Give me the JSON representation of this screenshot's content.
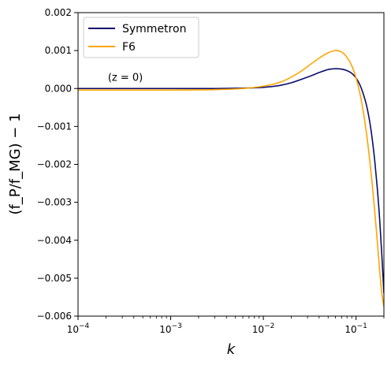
{
  "chart_data": {
    "type": "line",
    "xscale": "log",
    "xlabel": "k",
    "ylabel": "(f_P/f_MG) − 1",
    "xlim": [
      0.0001,
      0.2
    ],
    "ylim": [
      -0.006,
      0.002
    ],
    "x_ticks": [
      {
        "value": 0.0001,
        "base": "10",
        "exp": "−4"
      },
      {
        "value": 0.001,
        "base": "10",
        "exp": "−3"
      },
      {
        "value": 0.01,
        "base": "10",
        "exp": "−2"
      },
      {
        "value": 0.1,
        "base": "10",
        "exp": "−1"
      }
    ],
    "y_ticks": [
      {
        "value": 0.002,
        "label": "0.002"
      },
      {
        "value": 0.001,
        "label": "0.001"
      },
      {
        "value": 0.0,
        "label": "0.000"
      },
      {
        "value": -0.001,
        "label": "−0.001"
      },
      {
        "value": -0.002,
        "label": "−0.002"
      },
      {
        "value": -0.003,
        "label": "−0.003"
      },
      {
        "value": -0.004,
        "label": "−0.004"
      },
      {
        "value": -0.005,
        "label": "−0.005"
      },
      {
        "value": -0.006,
        "label": "−0.006"
      }
    ],
    "annotation": {
      "text": "(z = 0)",
      "x": 0.00021,
      "y": 0.0002
    },
    "legend_position": "top-left",
    "grid": false,
    "series": [
      {
        "name": "Symmetron",
        "color": "#0b0b6e",
        "x": [
          0.0001,
          0.001,
          0.003,
          0.006,
          0.01,
          0.015,
          0.02,
          0.03,
          0.04,
          0.05,
          0.06,
          0.07,
          0.08,
          0.09,
          0.1,
          0.11,
          0.12,
          0.13,
          0.14,
          0.15,
          0.16,
          0.17,
          0.18,
          0.19,
          0.2
        ],
        "y": [
          0.0,
          0.0,
          0.0,
          1e-05,
          3e-05,
          8e-05,
          0.00015,
          0.0003,
          0.00042,
          0.0005,
          0.00052,
          0.00051,
          0.00047,
          0.0004,
          0.00028,
          0.0001,
          -0.00015,
          -0.00045,
          -0.00085,
          -0.00135,
          -0.00195,
          -0.00265,
          -0.00345,
          -0.0044,
          -0.0054
        ]
      },
      {
        "name": "F6",
        "color": "#ffa500",
        "x": [
          0.0001,
          0.001,
          0.003,
          0.006,
          0.01,
          0.015,
          0.02,
          0.025,
          0.03,
          0.04,
          0.05,
          0.06,
          0.07,
          0.08,
          0.09,
          0.1,
          0.11,
          0.12,
          0.13,
          0.14,
          0.15,
          0.16,
          0.17,
          0.18,
          0.19,
          0.2
        ],
        "y": [
          -4e-05,
          -4e-05,
          -3e-05,
          0.0,
          6e-05,
          0.00016,
          0.0003,
          0.00044,
          0.00058,
          0.0008,
          0.00094,
          0.001,
          0.00096,
          0.00082,
          0.0006,
          0.00028,
          -0.00012,
          -0.00062,
          -0.0012,
          -0.00185,
          -0.00255,
          -0.0033,
          -0.00405,
          -0.0048,
          -0.0054,
          -0.00575
        ]
      }
    ]
  }
}
